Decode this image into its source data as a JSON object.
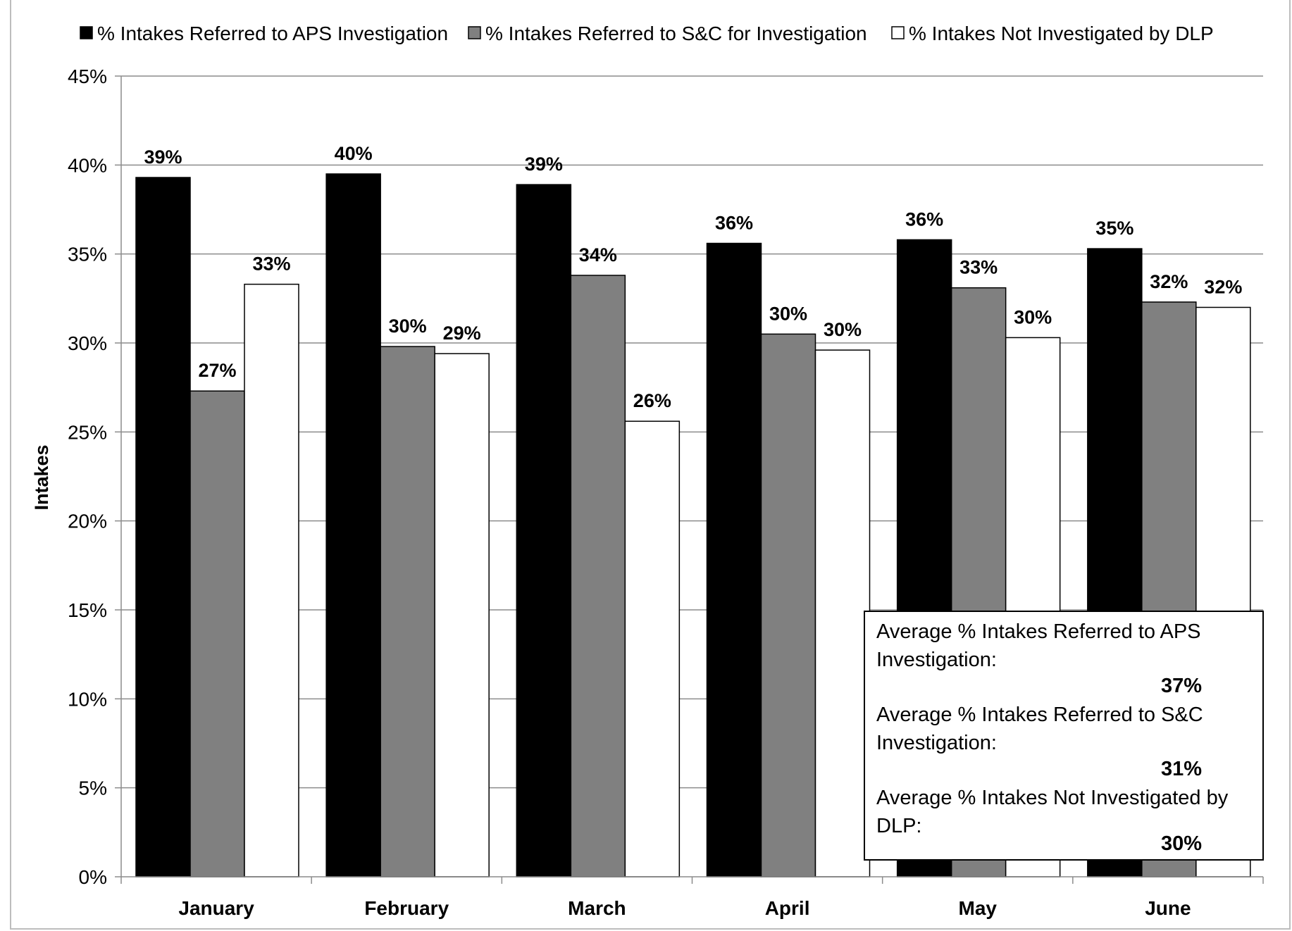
{
  "chart_data": {
    "type": "bar",
    "title": "",
    "xlabel": "",
    "ylabel": "Intakes",
    "ylim": [
      0,
      45
    ],
    "y_tick_step": 5,
    "y_tick_labels": [
      "0%",
      "5%",
      "10%",
      "15%",
      "20%",
      "25%",
      "30%",
      "35%",
      "40%",
      "45%"
    ],
    "grid": true,
    "legend_position": "top",
    "categories": [
      "January",
      "February",
      "March",
      "April",
      "May",
      "June"
    ],
    "series": [
      {
        "name": "% Intakes Referred to APS Investigation",
        "color": "#000000",
        "values": [
          39.3,
          39.5,
          38.9,
          35.6,
          35.8,
          35.3
        ],
        "labels": [
          "39%",
          "40%",
          "39%",
          "36%",
          "36%",
          "35%"
        ]
      },
      {
        "name": "% Intakes Referred to S&C for Investigation",
        "color": "#808080",
        "values": [
          27.3,
          29.8,
          33.8,
          30.5,
          33.1,
          32.3
        ],
        "labels": [
          "27%",
          "30%",
          "34%",
          "30%",
          "33%",
          "32%"
        ]
      },
      {
        "name": "% Intakes Not Investigated by DLP",
        "color": "#ffffff",
        "values": [
          33.3,
          29.4,
          25.6,
          29.6,
          30.3,
          32.0
        ],
        "labels": [
          "33%",
          "29%",
          "26%",
          "30%",
          "30%",
          "32%"
        ]
      }
    ],
    "annotation": {
      "items": [
        {
          "label": "Average % Intakes Referred to APS Investigation:",
          "value": "37%"
        },
        {
          "label": "Average % Intakes Referred to S&C Investigation:",
          "value": "31%"
        },
        {
          "label": "Average % Intakes Not Investigated by DLP:",
          "value": "30%"
        }
      ]
    }
  }
}
